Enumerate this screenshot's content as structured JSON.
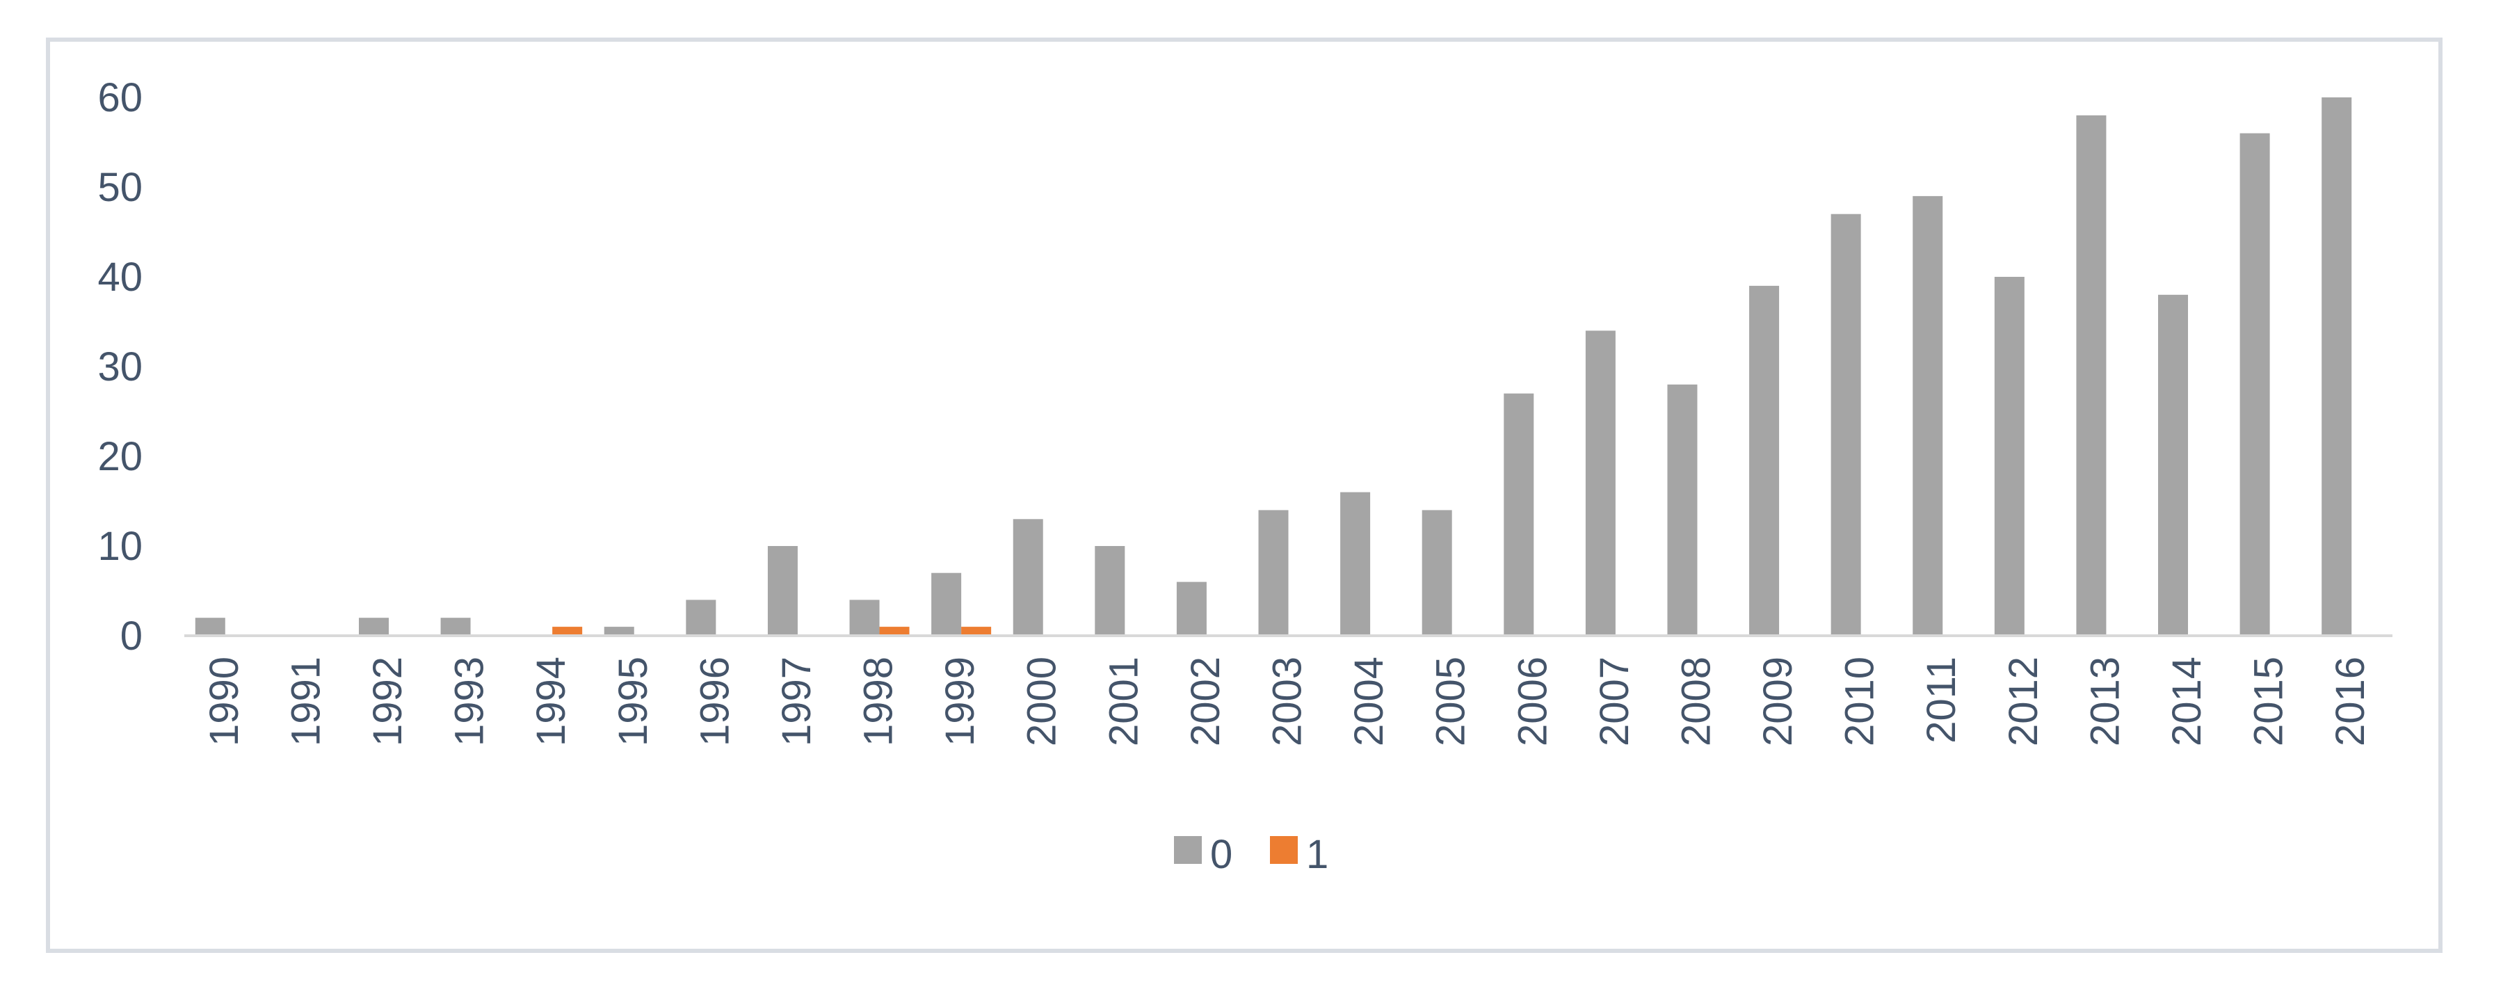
{
  "chart_data": {
    "type": "bar",
    "title": "",
    "xlabel": "",
    "ylabel": "",
    "categories": [
      "1990",
      "1991",
      "1992",
      "1993",
      "1994",
      "1995",
      "1996",
      "1997",
      "1998",
      "1999",
      "2000",
      "2001",
      "2002",
      "2003",
      "2004",
      "2005",
      "2006",
      "2007",
      "2008",
      "2009",
      "2010",
      "2011",
      "2012",
      "2013",
      "2014",
      "2015",
      "2016"
    ],
    "series": [
      {
        "name": "0",
        "color": "#a5a5a5",
        "values": [
          2,
          0,
          2,
          2,
          0,
          1,
          4,
          10,
          4,
          7,
          13,
          10,
          6,
          14,
          16,
          14,
          27,
          34,
          28,
          39,
          47,
          49,
          40,
          58,
          38,
          56,
          60
        ]
      },
      {
        "name": "1",
        "color": "#ed7d31",
        "values": [
          0,
          0,
          0,
          0,
          1,
          0,
          0,
          0,
          1,
          1,
          0,
          0,
          0,
          0,
          0,
          0,
          0,
          0,
          0,
          0,
          0,
          0,
          0,
          0,
          0,
          0,
          0
        ]
      }
    ],
    "ylim": [
      0,
      60
    ],
    "yticks": [
      0,
      10,
      20,
      30,
      40,
      50,
      60
    ],
    "grid": false,
    "legend_position": "bottom",
    "x_tick_rotation": "vertical"
  }
}
